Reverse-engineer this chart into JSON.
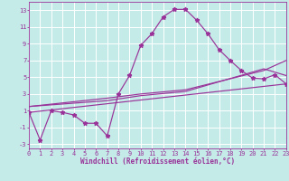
{
  "xlabel": "Windchill (Refroidissement éolien,°C)",
  "xlim": [
    0,
    23
  ],
  "ylim": [
    -3.5,
    14.0
  ],
  "yticks": [
    -3,
    -1,
    1,
    3,
    5,
    7,
    9,
    11,
    13
  ],
  "xticks": [
    0,
    1,
    2,
    3,
    4,
    5,
    6,
    7,
    8,
    9,
    10,
    11,
    12,
    13,
    14,
    15,
    16,
    17,
    18,
    19,
    20,
    21,
    22,
    23
  ],
  "bg": "#c4ebe8",
  "lc": "#993399",
  "main_x": [
    0,
    1,
    2,
    3,
    4,
    5,
    6,
    7,
    8,
    9,
    10,
    11,
    12,
    13,
    14,
    15,
    16,
    17,
    18,
    19,
    20,
    21,
    22,
    23
  ],
  "main_y": [
    0.8,
    -2.5,
    1.0,
    0.8,
    0.5,
    -0.5,
    -0.5,
    -2.0,
    3.0,
    5.2,
    8.8,
    10.2,
    12.2,
    13.1,
    13.1,
    11.8,
    10.2,
    8.3,
    7.0,
    5.8,
    4.9,
    4.8,
    5.3,
    4.2
  ],
  "trend1_x": [
    0,
    23
  ],
  "trend1_y": [
    0.8,
    4.2
  ],
  "trend2_x": [
    0,
    7,
    10,
    14,
    21,
    23
  ],
  "trend2_y": [
    1.5,
    2.2,
    2.8,
    3.3,
    6.0,
    5.2
  ],
  "trend3_x": [
    0,
    7,
    10,
    14,
    21,
    23
  ],
  "trend3_y": [
    1.5,
    2.5,
    3.0,
    3.5,
    5.8,
    7.0
  ]
}
